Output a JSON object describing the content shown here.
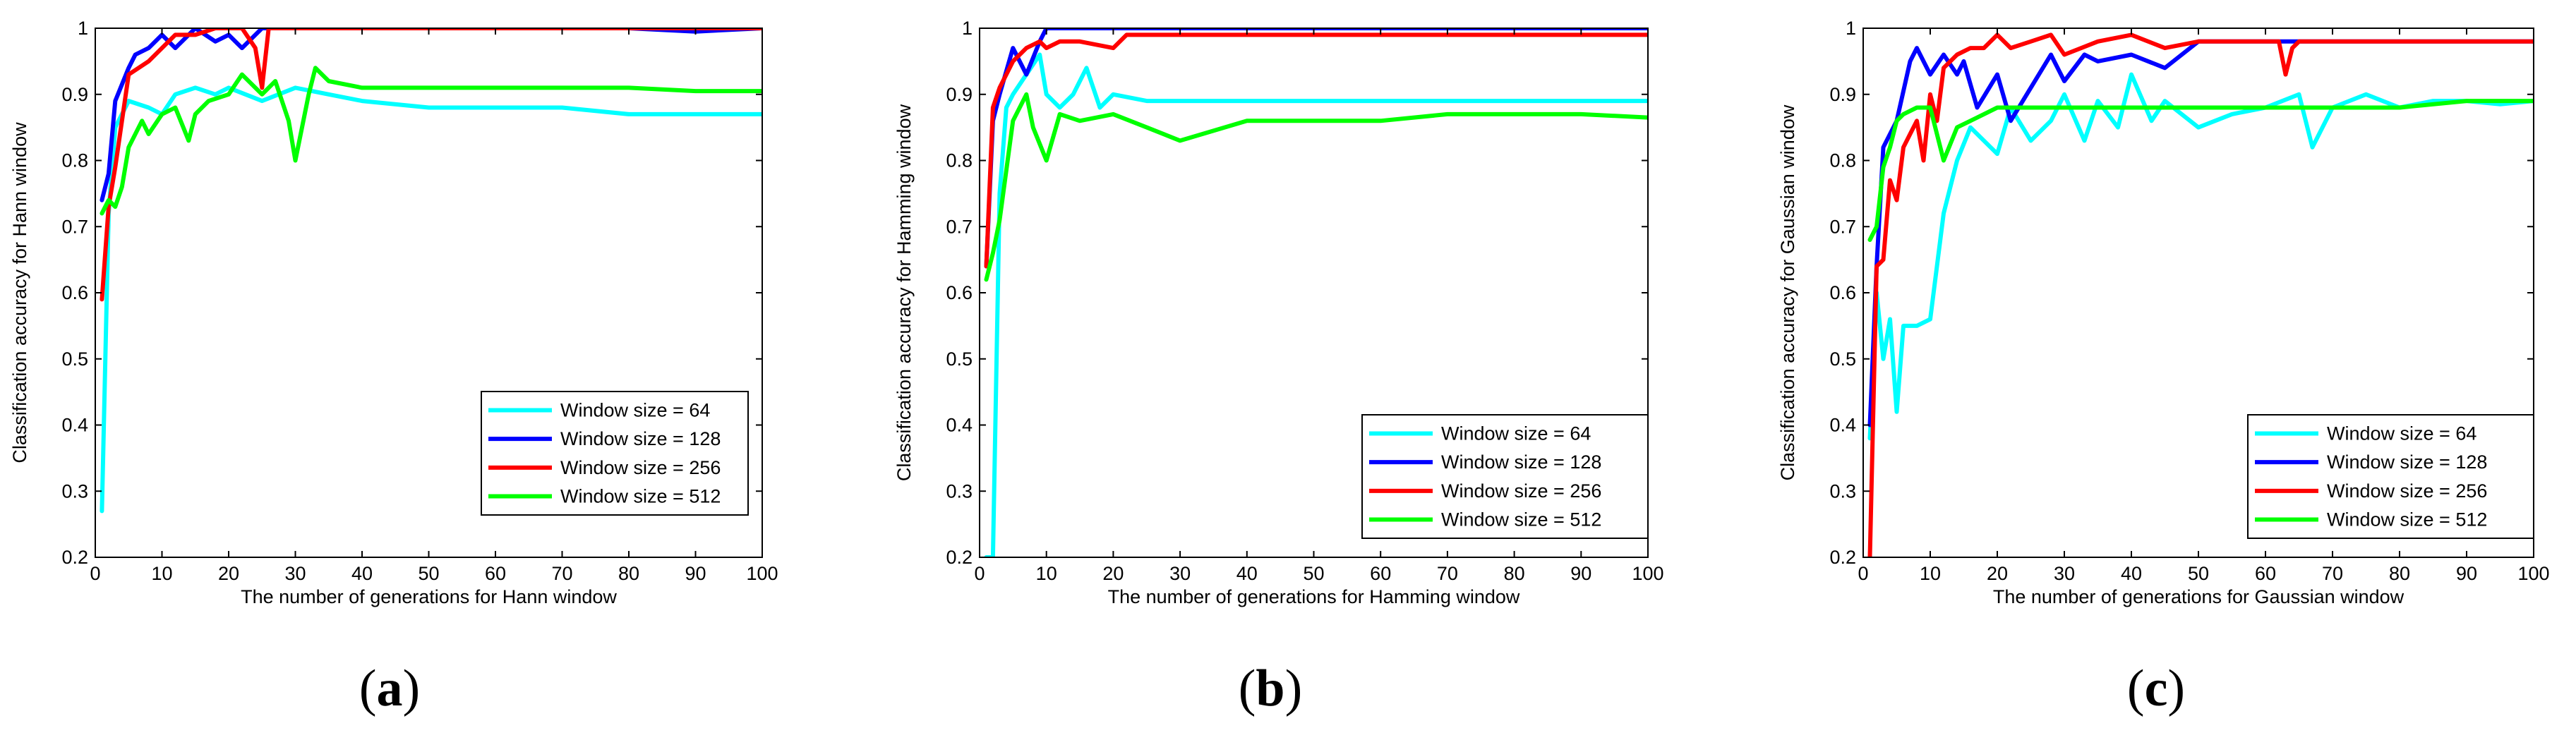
{
  "chart_data": [
    {
      "type": "line",
      "panel_label": "a",
      "title": "",
      "xlabel": "The number of generations for Hann window",
      "ylabel": "Classification accuracy for Hann window",
      "xlim": [
        0,
        100
      ],
      "ylim": [
        0.2,
        1
      ],
      "xticks": [
        0,
        10,
        20,
        30,
        40,
        50,
        60,
        70,
        80,
        90,
        100
      ],
      "yticks": [
        0.2,
        0.3,
        0.4,
        0.5,
        0.6,
        0.7,
        0.8,
        0.9,
        1
      ],
      "legend_position": "bottom-right",
      "series": [
        {
          "name": "Window size = 64",
          "color": "#00ffff",
          "x": [
            1,
            2,
            3,
            5,
            8,
            10,
            12,
            15,
            18,
            20,
            25,
            30,
            35,
            40,
            50,
            60,
            70,
            80,
            90,
            100
          ],
          "y": [
            0.27,
            0.72,
            0.85,
            0.89,
            0.88,
            0.87,
            0.9,
            0.91,
            0.9,
            0.91,
            0.89,
            0.91,
            0.9,
            0.89,
            0.88,
            0.88,
            0.88,
            0.87,
            0.87,
            0.87
          ]
        },
        {
          "name": "Window size = 128",
          "color": "#0000ff",
          "x": [
            1,
            2,
            3,
            5,
            6,
            8,
            10,
            12,
            15,
            18,
            20,
            22,
            25,
            30,
            40,
            50,
            60,
            70,
            80,
            90,
            100
          ],
          "y": [
            0.74,
            0.78,
            0.89,
            0.94,
            0.96,
            0.97,
            0.99,
            0.97,
            1.0,
            0.98,
            0.99,
            0.97,
            1.0,
            1.0,
            1.0,
            1.0,
            1.0,
            1.0,
            1.0,
            0.995,
            1.0
          ]
        },
        {
          "name": "Window size = 256",
          "color": "#ff0000",
          "x": [
            1,
            2,
            3,
            5,
            8,
            10,
            12,
            15,
            18,
            20,
            22,
            24,
            25,
            26,
            30,
            40,
            50,
            60,
            70,
            80,
            90,
            100
          ],
          "y": [
            0.59,
            0.73,
            0.79,
            0.93,
            0.95,
            0.97,
            0.99,
            0.99,
            1.0,
            1.0,
            1.0,
            0.97,
            0.91,
            1.0,
            1.0,
            1.0,
            1.0,
            1.0,
            1.0,
            1.0,
            1.0,
            1.0
          ]
        },
        {
          "name": "Window size = 512",
          "color": "#00ff00",
          "x": [
            1,
            2,
            3,
            4,
            5,
            7,
            8,
            10,
            12,
            14,
            15,
            17,
            20,
            22,
            25,
            27,
            29,
            30,
            32,
            33,
            35,
            40,
            45,
            50,
            60,
            70,
            80,
            90,
            100
          ],
          "y": [
            0.72,
            0.74,
            0.73,
            0.76,
            0.82,
            0.86,
            0.84,
            0.87,
            0.88,
            0.83,
            0.87,
            0.89,
            0.9,
            0.93,
            0.9,
            0.92,
            0.86,
            0.8,
            0.9,
            0.94,
            0.92,
            0.91,
            0.91,
            0.91,
            0.91,
            0.91,
            0.91,
            0.905,
            0.905
          ]
        }
      ]
    },
    {
      "type": "line",
      "panel_label": "b",
      "title": "",
      "xlabel": "The number of generations for Hamming window",
      "ylabel": "Classification accuracy for Hamming window",
      "xlim": [
        0,
        100
      ],
      "ylim": [
        0.2,
        1
      ],
      "xticks": [
        0,
        10,
        20,
        30,
        40,
        50,
        60,
        70,
        80,
        90,
        100
      ],
      "yticks": [
        0.2,
        0.3,
        0.4,
        0.5,
        0.6,
        0.7,
        0.8,
        0.9,
        1
      ],
      "legend_position": "bottom-right",
      "series": [
        {
          "name": "Window size = 64",
          "color": "#00ffff",
          "x": [
            1,
            2,
            3,
            4,
            5,
            7,
            9,
            10,
            12,
            14,
            16,
            18,
            20,
            25,
            30,
            40,
            50,
            60,
            70,
            80,
            90,
            100
          ],
          "y": [
            0.2,
            0.2,
            0.75,
            0.88,
            0.9,
            0.93,
            0.96,
            0.9,
            0.88,
            0.9,
            0.94,
            0.88,
            0.9,
            0.89,
            0.89,
            0.89,
            0.89,
            0.89,
            0.89,
            0.89,
            0.89,
            0.89
          ]
        },
        {
          "name": "Window size = 128",
          "color": "#0000ff",
          "x": [
            1,
            2,
            3,
            5,
            7,
            9,
            10,
            12,
            15,
            20,
            25,
            30,
            40,
            50,
            60,
            70,
            80,
            90,
            100
          ],
          "y": [
            0.64,
            0.86,
            0.9,
            0.97,
            0.93,
            0.98,
            1.0,
            1.0,
            1.0,
            1.0,
            1.0,
            1.0,
            1.0,
            1.0,
            1.0,
            1.0,
            1.0,
            1.0,
            1.0
          ]
        },
        {
          "name": "Window size = 256",
          "color": "#ff0000",
          "x": [
            1,
            2,
            3,
            5,
            7,
            9,
            10,
            12,
            15,
            20,
            22,
            25,
            30,
            40,
            50,
            60,
            70,
            80,
            90,
            100
          ],
          "y": [
            0.64,
            0.88,
            0.91,
            0.95,
            0.97,
            0.98,
            0.97,
            0.98,
            0.98,
            0.97,
            0.99,
            0.99,
            0.99,
            0.99,
            0.99,
            0.99,
            0.99,
            0.99,
            0.99,
            0.99
          ]
        },
        {
          "name": "Window size = 512",
          "color": "#00ff00",
          "x": [
            1,
            2,
            3,
            5,
            7,
            8,
            10,
            12,
            15,
            20,
            25,
            30,
            40,
            50,
            60,
            70,
            80,
            90,
            100
          ],
          "y": [
            0.62,
            0.66,
            0.71,
            0.86,
            0.9,
            0.85,
            0.8,
            0.87,
            0.86,
            0.87,
            0.85,
            0.83,
            0.86,
            0.86,
            0.86,
            0.87,
            0.87,
            0.87,
            0.865
          ]
        }
      ]
    },
    {
      "type": "line",
      "panel_label": "c",
      "title": "",
      "xlabel": "The number of generations for Gaussian window",
      "ylabel": "Classification accuracy for Gaussian window",
      "xlim": [
        0,
        100
      ],
      "ylim": [
        0.2,
        1
      ],
      "xticks": [
        0,
        10,
        20,
        30,
        40,
        50,
        60,
        70,
        80,
        90,
        100
      ],
      "yticks": [
        0.2,
        0.3,
        0.4,
        0.5,
        0.6,
        0.7,
        0.8,
        0.9,
        1
      ],
      "legend_position": "bottom-right",
      "series": [
        {
          "name": "Window size = 64",
          "color": "#00ffff",
          "x": [
            1,
            2,
            3,
            4,
            5,
            6,
            8,
            10,
            12,
            14,
            16,
            18,
            20,
            22,
            25,
            28,
            30,
            33,
            35,
            38,
            40,
            43,
            45,
            50,
            55,
            60,
            65,
            67,
            70,
            75,
            80,
            85,
            90,
            95,
            100
          ],
          "y": [
            0.38,
            0.6,
            0.5,
            0.56,
            0.42,
            0.55,
            0.55,
            0.56,
            0.72,
            0.8,
            0.85,
            0.83,
            0.81,
            0.88,
            0.83,
            0.86,
            0.9,
            0.83,
            0.89,
            0.85,
            0.93,
            0.86,
            0.89,
            0.85,
            0.87,
            0.88,
            0.9,
            0.82,
            0.88,
            0.9,
            0.88,
            0.89,
            0.89,
            0.885,
            0.89
          ]
        },
        {
          "name": "Window size = 128",
          "color": "#0000ff",
          "x": [
            1,
            2,
            3,
            5,
            7,
            8,
            10,
            12,
            14,
            15,
            17,
            20,
            22,
            25,
            28,
            30,
            33,
            35,
            40,
            45,
            50,
            60,
            70,
            80,
            90,
            100
          ],
          "y": [
            0.4,
            0.64,
            0.82,
            0.86,
            0.95,
            0.97,
            0.93,
            0.96,
            0.93,
            0.95,
            0.88,
            0.93,
            0.86,
            0.91,
            0.96,
            0.92,
            0.96,
            0.95,
            0.96,
            0.94,
            0.98,
            0.98,
            0.98,
            0.98,
            0.98,
            0.98
          ]
        },
        {
          "name": "Window size = 256",
          "color": "#ff0000",
          "x": [
            1,
            2,
            3,
            4,
            5,
            6,
            7,
            8,
            9,
            10,
            11,
            12,
            14,
            16,
            18,
            20,
            22,
            25,
            28,
            30,
            35,
            40,
            45,
            50,
            55,
            60,
            62,
            63,
            64,
            65,
            70,
            75,
            80,
            90,
            100
          ],
          "y": [
            0.2,
            0.64,
            0.65,
            0.77,
            0.74,
            0.82,
            0.84,
            0.86,
            0.8,
            0.9,
            0.86,
            0.94,
            0.96,
            0.97,
            0.97,
            0.99,
            0.97,
            0.98,
            0.99,
            0.96,
            0.98,
            0.99,
            0.97,
            0.98,
            0.98,
            0.98,
            0.98,
            0.93,
            0.97,
            0.98,
            0.98,
            0.98,
            0.98,
            0.98,
            0.98
          ]
        },
        {
          "name": "Window size = 512",
          "color": "#00ff00",
          "x": [
            1,
            2,
            3,
            4,
            5,
            6,
            8,
            10,
            12,
            14,
            16,
            18,
            20,
            25,
            30,
            40,
            50,
            60,
            70,
            80,
            90,
            100
          ],
          "y": [
            0.68,
            0.7,
            0.79,
            0.82,
            0.86,
            0.87,
            0.88,
            0.88,
            0.8,
            0.85,
            0.86,
            0.87,
            0.88,
            0.88,
            0.88,
            0.88,
            0.88,
            0.88,
            0.88,
            0.88,
            0.89,
            0.89
          ]
        }
      ]
    }
  ]
}
